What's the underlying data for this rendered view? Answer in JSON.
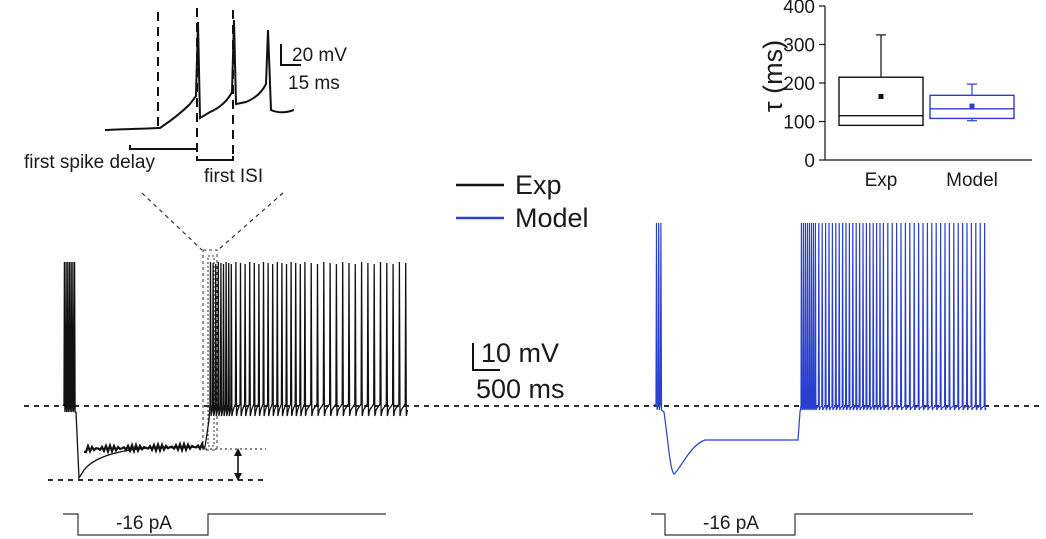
{
  "inset_annotations": {
    "scale_mv": "20 mV",
    "scale_ms": "15 ms",
    "first_spike_delay": "first spike delay",
    "first_isi": "first ISI"
  },
  "legend": {
    "exp_label": "Exp",
    "model_label": "Model",
    "exp_color": "#111111",
    "model_color": "#2a3fd0"
  },
  "main_scale": {
    "mv": "10 mV",
    "ms": "500 ms"
  },
  "stimulus": {
    "left_label": "-16 pA",
    "right_label": "-16 pA"
  },
  "chart_data": {
    "type": "box",
    "ylabel": "τ (ms)",
    "ylim": [
      0,
      400
    ],
    "yticks": [
      0,
      100,
      200,
      300,
      400
    ],
    "categories": [
      "Exp",
      "Model"
    ],
    "boxes": [
      {
        "name": "Exp",
        "min": 90,
        "q1": 90,
        "median": 115,
        "q3": 215,
        "max": 325,
        "mean": 165,
        "color": "#111111"
      },
      {
        "name": "Model",
        "min": 102,
        "q1": 108,
        "median": 133,
        "q3": 168,
        "max": 197,
        "mean": 140,
        "color": "#2a3fd0"
      }
    ]
  }
}
